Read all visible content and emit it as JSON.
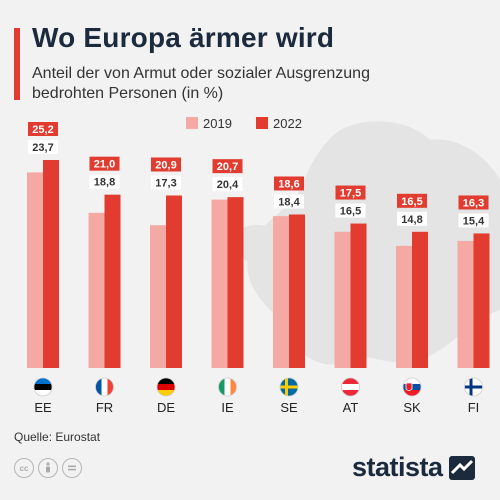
{
  "header": {
    "title": "Wo Europa ärmer wird",
    "subtitle": "Anteil der von Armut oder sozialer Ausgrenzung bedrohten Personen (in %)"
  },
  "footer": {
    "source": "Quelle: Eurostat",
    "brand": "statista",
    "license_icons": [
      "creative-commons-icon",
      "attribution-icon",
      "no-derivatives-icon"
    ]
  },
  "colors": {
    "series_2019": "#f4a9a5",
    "series_2022": "#e23b2f",
    "title": "#1b2a3d",
    "map": "#e4e4e4"
  },
  "chart_data": {
    "type": "bar",
    "categories": [
      "EE",
      "FR",
      "DE",
      "IE",
      "SE",
      "AT",
      "SK",
      "FI"
    ],
    "series": [
      {
        "name": "2019",
        "values": [
          23.7,
          18.8,
          17.3,
          20.4,
          18.4,
          16.5,
          14.8,
          15.4
        ],
        "labels": [
          "23,7",
          "18,8",
          "17,3",
          "20,4",
          "18,4",
          "16,5",
          "14,8",
          "15,4"
        ]
      },
      {
        "name": "2022",
        "values": [
          25.2,
          21.0,
          20.9,
          20.7,
          18.6,
          17.5,
          16.5,
          16.3
        ],
        "labels": [
          "25,2",
          "21,0",
          "20,9",
          "20,7",
          "18,6",
          "17,5",
          "16,5",
          "16,3"
        ]
      }
    ],
    "ylim": [
      0,
      30
    ],
    "legend_position": "top-center",
    "grid": false,
    "flags": [
      "estonia-flag-icon",
      "france-flag-icon",
      "germany-flag-icon",
      "ireland-flag-icon",
      "sweden-flag-icon",
      "austria-flag-icon",
      "slovakia-flag-icon",
      "finland-flag-icon"
    ]
  }
}
